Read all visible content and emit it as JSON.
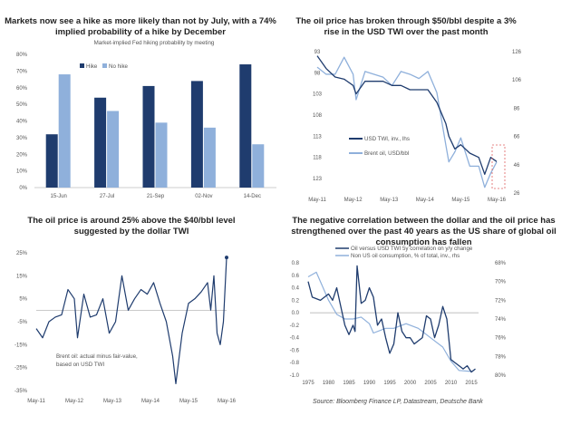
{
  "colors": {
    "dark": "#1f3c6e",
    "light": "#8fb0db",
    "zero": "#aaa",
    "box": "#e06060"
  },
  "chart_data": [
    {
      "type": "bar",
      "title": "Markets now see a hike as more likely than not by July, with a 74% implied probability of a hike by December",
      "subtitle": "Market-implied Fed hiking probability by meeting",
      "categories": [
        "15-Jun",
        "27-Jul",
        "21-Sep",
        "02-Nov",
        "14-Dec"
      ],
      "series": [
        {
          "name": "Hike",
          "values": [
            32,
            54,
            61,
            64,
            74
          ]
        },
        {
          "name": "No hike",
          "values": [
            68,
            46,
            39,
            36,
            26
          ]
        }
      ],
      "yticks": [
        "0%",
        "10%",
        "20%",
        "30%",
        "40%",
        "50%",
        "60%",
        "70%",
        "80%"
      ],
      "ylim": [
        0,
        80
      ],
      "legend": "top-center"
    },
    {
      "type": "line",
      "title": "The oil price has broken through $50/bbl despite a 3% rise in the USD TWI over the past month",
      "xticks": [
        "May-11",
        "May-12",
        "May-13",
        "May-14",
        "May-15",
        "May-16"
      ],
      "yticks_left": [
        "93",
        "98",
        "103",
        "108",
        "113",
        "118",
        "123"
      ],
      "ylim_left": [
        123,
        93
      ],
      "yticks_right": [
        "26",
        "46",
        "66",
        "86",
        "106",
        "126"
      ],
      "ylim_right": [
        26,
        126
      ],
      "x": [
        "May-11",
        "Aug-11",
        "Nov-11",
        "Feb-12",
        "May-12",
        "Jun-12",
        "Sep-12",
        "Dec-12",
        "Mar-13",
        "Jun-13",
        "Sep-13",
        "Dec-13",
        "Mar-14",
        "Jun-14",
        "Sep-14",
        "Dec-14",
        "Jan-15",
        "Mar-15",
        "May-15",
        "Aug-15",
        "Nov-15",
        "Jan-16",
        "Mar-16",
        "May-16"
      ],
      "series": [
        {
          "name": "USD TWI, inv., lhs",
          "axis": "left",
          "values": [
            94,
            97,
            99,
            99.5,
            101,
            103,
            100,
            100,
            100,
            101,
            101,
            102,
            102,
            102,
            105,
            110,
            113,
            116,
            115,
            117,
            118,
            122,
            118,
            119
          ]
        },
        {
          "name": "Brent oil, USD/bbl",
          "axis": "right",
          "values": [
            115,
            110,
            110,
            122,
            110,
            92,
            112,
            110,
            108,
            102,
            112,
            110,
            107,
            112,
            97,
            60,
            48,
            55,
            65,
            45,
            45,
            30,
            40,
            48
          ]
        }
      ],
      "legend": "center-left",
      "annotation": "dashed box highlighting 2016"
    },
    {
      "type": "line",
      "title": "The oil price is around 25% above the $40/bbl level suggested by the dollar TWI",
      "xticks": [
        "May-11",
        "May-12",
        "May-13",
        "May-14",
        "May-15",
        "May-16"
      ],
      "yticks": [
        "25%",
        "15%",
        "5%",
        "-5%",
        "-15%",
        "-25%",
        "-35%"
      ],
      "ylim": [
        -35,
        25
      ],
      "annotation": "Brent oil: actual minus fair-value, based on USD TWI",
      "x_months": [
        0,
        2,
        4,
        6,
        8,
        10,
        12,
        13,
        15,
        17,
        19,
        21,
        23,
        25,
        27,
        29,
        31,
        33,
        35,
        37,
        39,
        41,
        43,
        44,
        46,
        48,
        50,
        52,
        54,
        55,
        56,
        57,
        58,
        59,
        60
      ],
      "values": [
        -8,
        -12,
        -5,
        -3,
        -2,
        9,
        5,
        -12,
        7,
        -3,
        -2,
        5,
        -10,
        -5,
        15,
        0,
        5,
        9,
        7,
        12,
        3,
        -5,
        -20,
        -32,
        -10,
        3,
        5,
        8,
        12,
        0,
        15,
        -10,
        -15,
        -5,
        23
      ]
    },
    {
      "type": "line",
      "title": "The negative correlation between the dollar and the oil price has strengthened over the past 40 years as the US share of global oil consumption has fallen",
      "xticks": [
        "1975",
        "1980",
        "1985",
        "1990",
        "1995",
        "2000",
        "2005",
        "2010",
        "2015"
      ],
      "yticks_left": [
        "0.8",
        "0.6",
        "0.4",
        "0.2",
        "0.0",
        "-0.2",
        "-0.4",
        "-0.6",
        "-0.8",
        "-1.0"
      ],
      "ylim_left": [
        -1,
        0.8
      ],
      "yticks_right": [
        "68%",
        "70%",
        "72%",
        "74%",
        "76%",
        "78%",
        "80%"
      ],
      "ylim_right": [
        80,
        68
      ],
      "series": [
        {
          "name": "Oil versus USD TWI 5y correlation on y/y change",
          "axis": "left",
          "x": [
            1975,
            1976,
            1978,
            1979,
            1980,
            1981,
            1982,
            1983,
            1984,
            1985,
            1986,
            1986.5,
            1987,
            1988,
            1989,
            1990,
            1991,
            1992,
            1993,
            1994,
            1995,
            1996,
            1997,
            1998,
            1999,
            2000,
            2001,
            2002,
            2003,
            2004,
            2005,
            2006,
            2007,
            2008,
            2009,
            2010,
            2011,
            2012,
            2013,
            2014,
            2015,
            2016
          ],
          "values": [
            0.5,
            0.25,
            0.2,
            0.25,
            0.3,
            0.2,
            0.4,
            0.1,
            -0.2,
            -0.35,
            -0.2,
            -0.3,
            0.75,
            0.15,
            0.2,
            0.4,
            0.25,
            -0.2,
            -0.1,
            -0.4,
            -0.65,
            -0.5,
            0.0,
            -0.3,
            -0.4,
            -0.4,
            -0.5,
            -0.45,
            -0.4,
            -0.05,
            -0.1,
            -0.4,
            -0.2,
            0.1,
            -0.1,
            -0.75,
            -0.8,
            -0.85,
            -0.9,
            -0.85,
            -0.95,
            -0.9
          ]
        },
        {
          "name": "Non US oil consumption, % of total, inv., rhs",
          "axis": "right",
          "x": [
            1975,
            1977,
            1980,
            1982,
            1984,
            1986,
            1988,
            1990,
            1991,
            1994,
            1996,
            1999,
            2002,
            2005,
            2008,
            2010,
            2012,
            2015
          ],
          "values": [
            69.5,
            69,
            72,
            73.5,
            74,
            74,
            73.8,
            74.5,
            75.5,
            75,
            75,
            74.5,
            75,
            76,
            77,
            78.5,
            79.5,
            79.6
          ]
        }
      ],
      "legend": "top-center",
      "source": "Source: Bloomberg Finance LP, Datastream, Deutsche Bank"
    }
  ]
}
